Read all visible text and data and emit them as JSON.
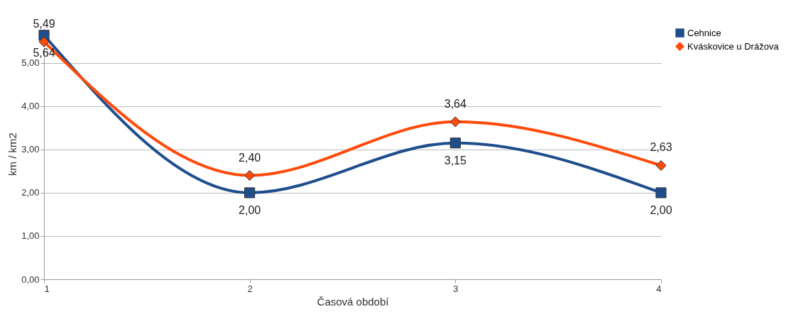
{
  "chart_data": {
    "type": "line",
    "xlabel": "Časová období",
    "ylabel": "km / km2",
    "x": [
      1,
      2,
      3,
      4
    ],
    "xlim": [
      1,
      4
    ],
    "xticks": [
      1,
      2,
      3,
      4
    ],
    "ylim": [
      0,
      5.8
    ],
    "yticks": [
      {
        "value": 0,
        "label": "0,00"
      },
      {
        "value": 1,
        "label": "1,00"
      },
      {
        "value": 2,
        "label": "2,00"
      },
      {
        "value": 3,
        "label": "3,00"
      },
      {
        "value": 4,
        "label": "4,00"
      },
      {
        "value": 5,
        "label": "5,00"
      }
    ],
    "grid": "y",
    "legend": "right",
    "series": [
      {
        "name": "Cehnice",
        "color": "#1f4e8c",
        "marker": "square",
        "values": [
          5.64,
          2.0,
          3.15,
          2.0
        ],
        "value_labels": [
          "5,64",
          "2,00",
          "3,15",
          "2,00"
        ]
      },
      {
        "name": "Kváskovice u Drážova",
        "color": "#ff4a0a",
        "marker": "diamond",
        "values": [
          5.49,
          2.4,
          3.64,
          2.63
        ],
        "value_labels": [
          "5,49",
          "2,40",
          "3,64",
          "2,63"
        ]
      }
    ]
  }
}
